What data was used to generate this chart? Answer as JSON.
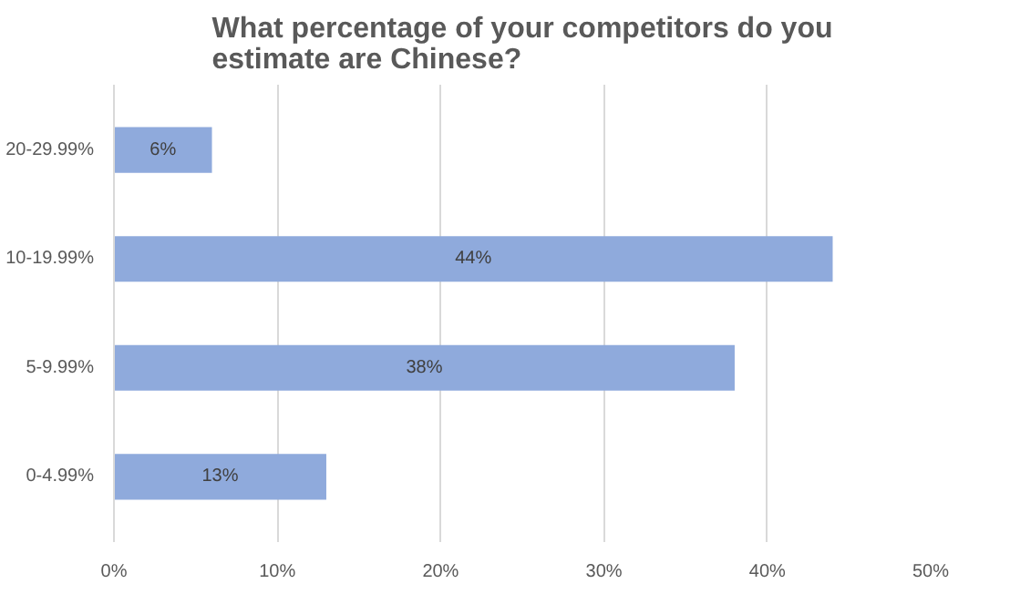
{
  "chart_data": {
    "type": "bar",
    "orientation": "horizontal",
    "title": "What percentage of your competitors do you estimate are Chinese?",
    "categories": [
      "20-29.99%",
      "10-19.99%",
      "5-9.99%",
      "0-4.99%"
    ],
    "values": [
      6,
      44,
      38,
      13
    ],
    "value_labels": [
      "6%",
      "44%",
      "38%",
      "13%"
    ],
    "color": "#8faadc",
    "xlim": [
      0,
      50
    ],
    "xticks": [
      {
        "value": 0,
        "label": "0%"
      },
      {
        "value": 10,
        "label": "10%"
      },
      {
        "value": 20,
        "label": "20%"
      },
      {
        "value": 30,
        "label": "30%"
      },
      {
        "value": 40,
        "label": "40%"
      },
      {
        "value": 50,
        "label": "50%"
      }
    ],
    "grid": "x"
  }
}
